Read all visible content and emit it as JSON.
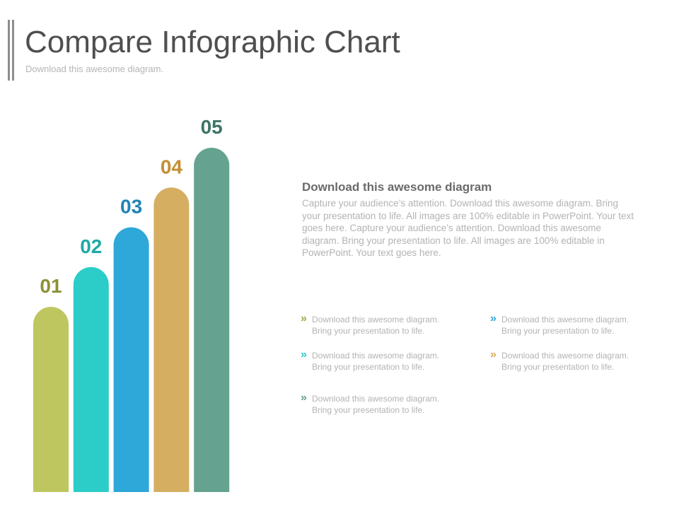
{
  "header": {
    "title": "Compare Infographic Chart",
    "subtitle": "Download this awesome diagram."
  },
  "chart_data": {
    "type": "bar",
    "categories": [
      "01",
      "02",
      "03",
      "04",
      "05"
    ],
    "values": [
      1,
      2,
      3,
      4,
      5
    ],
    "colors": [
      "#bec75f",
      "#2ccdc8",
      "#2ea7d9",
      "#d5ae61",
      "#65a290"
    ],
    "label_colors": [
      "#8c9138",
      "#1ea9a6",
      "#1f85b4",
      "#c38f31",
      "#3d7565"
    ],
    "title": "",
    "xlabel": "",
    "ylabel": "",
    "ylim": [
      0,
      5
    ],
    "grid": false,
    "legend": "none"
  },
  "description": {
    "heading": "Download this awesome diagram",
    "body": "Capture your audience’s attention. Download this  awesome diagram. Bring your presentation to life. All images are 100% editable in PowerPoint. Your text goes here. Capture your audience’s attention. Download this  awesome diagram. Bring your presentation to life. All images are 100% editable in PowerPoint. Your text goes here."
  },
  "bullets": {
    "mark": "»",
    "items": [
      {
        "line1": "Download  this awesome diagram.",
        "line2": "Bring your presentation  to life.",
        "color": "#9aa94a"
      },
      {
        "line1": "Download  this awesome diagram.",
        "line2": "Bring your presentation  to life.",
        "color": "#2ea7d9"
      },
      {
        "line1": "Download  this awesome diagram.",
        "line2": "Bring your presentation  to life.",
        "color": "#2ccdc8"
      },
      {
        "line1": "Download  this awesome diagram.",
        "line2": "Bring your presentation  to life.",
        "color": "#d5ae61"
      },
      {
        "line1": "Download  this awesome diagram.",
        "line2": "Bring your presentation  to life.",
        "color": "#65a290"
      }
    ]
  }
}
